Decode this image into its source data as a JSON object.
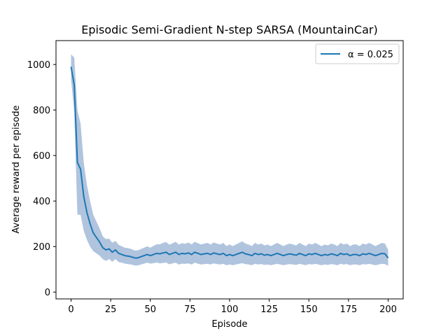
{
  "chart_data": {
    "type": "line",
    "title": "Episodic Semi-Gradient N-step SARSA (MountainCar)",
    "xlabel": "Episode",
    "ylabel": "Average reward per episode",
    "xlim": [
      -9.5,
      209.5
    ],
    "ylim": [
      -30,
      1105
    ],
    "xticks": [
      0,
      25,
      50,
      75,
      100,
      125,
      150,
      175,
      200
    ],
    "yticks": [
      0,
      200,
      400,
      600,
      800,
      1000
    ],
    "grid": false,
    "legend_position": "top-right",
    "colors": {
      "line": "#1f77b4",
      "band": "#b0c4de",
      "axes": "#000000"
    },
    "series": [
      {
        "name": "α = 0.025",
        "band": "mean ± std",
        "x_start": 0,
        "x_step": 2,
        "values": [
          990,
          910,
          570,
          540,
          420,
          350,
          300,
          260,
          240,
          220,
          195,
          185,
          190,
          175,
          185,
          170,
          165,
          160,
          158,
          155,
          150,
          150,
          155,
          160,
          165,
          160,
          165,
          170,
          168,
          172,
          175,
          165,
          170,
          175,
          165,
          170,
          168,
          172,
          165,
          175,
          170,
          165,
          168,
          170,
          165,
          172,
          168,
          165,
          170,
          160,
          165,
          160,
          165,
          170,
          175,
          168,
          165,
          160,
          170,
          165,
          168,
          162,
          165,
          160,
          165,
          170,
          165,
          160,
          165,
          168,
          165,
          162,
          170,
          165,
          160,
          168,
          165,
          170,
          165,
          160,
          165,
          162,
          168,
          165,
          160,
          170,
          165,
          168,
          160,
          165,
          165,
          160,
          168,
          165,
          170,
          165,
          160,
          165,
          170,
          168,
          150
        ],
        "std": [
          55,
          120,
          230,
          200,
          150,
          120,
          100,
          80,
          70,
          60,
          50,
          48,
          45,
          42,
          40,
          38,
          36,
          35,
          35,
          34,
          33,
          33,
          34,
          35,
          36,
          35,
          38,
          40,
          42,
          44,
          45,
          43,
          44,
          46,
          44,
          45,
          44,
          46,
          44,
          46,
          45,
          44,
          45,
          46,
          44,
          46,
          45,
          44,
          46,
          42,
          44,
          42,
          44,
          46,
          48,
          45,
          44,
          42,
          46,
          44,
          45,
          43,
          44,
          42,
          44,
          46,
          44,
          42,
          44,
          45,
          44,
          43,
          46,
          44,
          42,
          45,
          44,
          46,
          44,
          42,
          44,
          43,
          45,
          44,
          42,
          46,
          44,
          45,
          42,
          44,
          44,
          42,
          45,
          44,
          46,
          44,
          42,
          44,
          46,
          45,
          35
        ]
      }
    ]
  }
}
